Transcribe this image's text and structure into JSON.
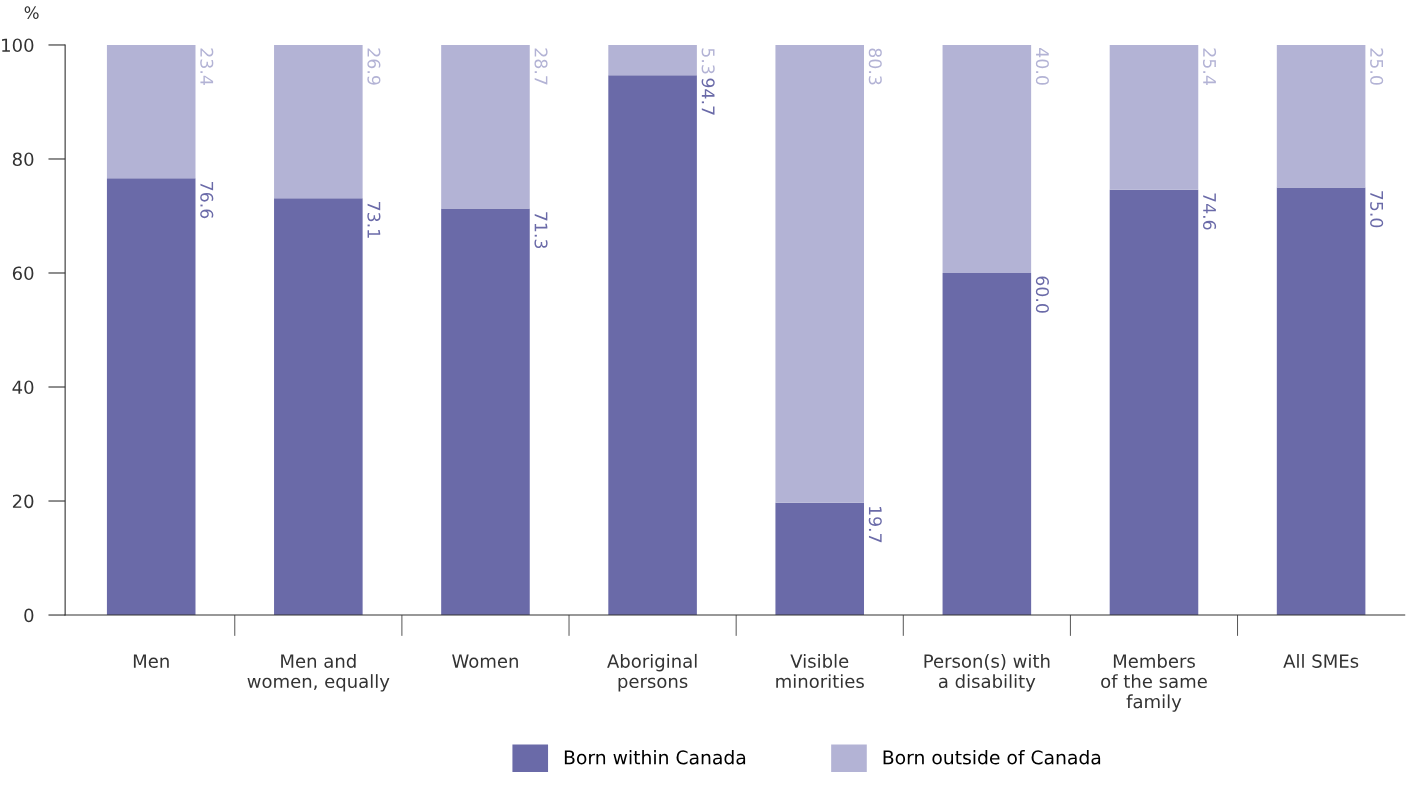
{
  "chart_data": {
    "type": "bar",
    "stacked": true,
    "ylabel": "%",
    "categories": [
      "Men",
      "Men and\nwomen, equally",
      "Women",
      "Aboriginal\npersons",
      "Visible\nminorities",
      "Person(s) with\na disability",
      "Members\nof the same\nfamily",
      "All SMEs"
    ],
    "series": [
      {
        "name": "Born within Canada",
        "color": "#6a6aa8",
        "values": [
          76.6,
          73.1,
          71.3,
          94.7,
          19.7,
          60.0,
          74.6,
          75.0
        ],
        "value_labels": [
          "76.6",
          "73.1",
          "71.3",
          "94.7",
          "19.7",
          "60.0",
          "74.6",
          "75.0"
        ]
      },
      {
        "name": "Born outside of Canada",
        "color": "#b3b3d5",
        "values": [
          23.4,
          26.9,
          28.7,
          5.3,
          80.3,
          40.0,
          25.4,
          25.0
        ],
        "value_labels": [
          "23.4",
          "26.9",
          "28.7",
          "5.3",
          "80.3",
          "40.0",
          "25.4",
          "25.0"
        ]
      }
    ],
    "ylim": [
      0,
      100
    ],
    "yticks": [
      0,
      20,
      40,
      60,
      80,
      100
    ],
    "grid": false,
    "legend": "bottom"
  }
}
